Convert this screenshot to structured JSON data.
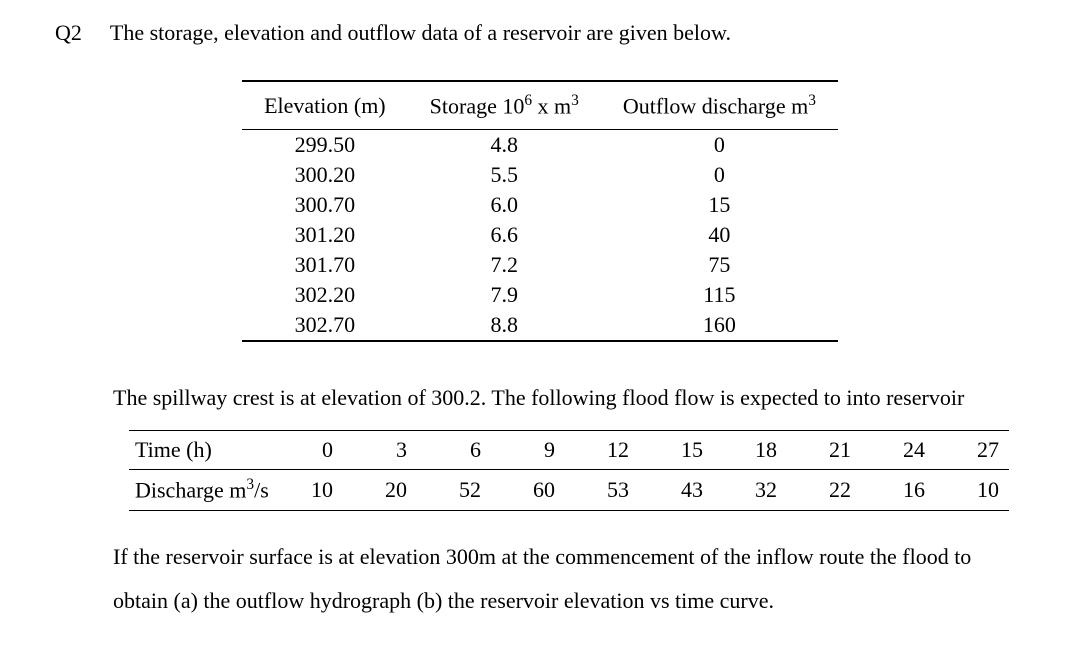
{
  "question": {
    "label": "Q2",
    "prompt": "The storage, elevation and outflow data of a reservoir are given below."
  },
  "table1": {
    "headers": {
      "col1_pre": "Elevation (m)",
      "col2_pre": "Storage 10",
      "col2_sup": "6",
      "col2_post": " x m",
      "col2_sup2": "3",
      "col3_pre": "Outflow discharge m",
      "col3_sup": "3"
    },
    "rows": [
      {
        "elev": "299.50",
        "storage": "4.8",
        "outflow": "0"
      },
      {
        "elev": "300.20",
        "storage": "5.5",
        "outflow": "0"
      },
      {
        "elev": "300.70",
        "storage": "6.0",
        "outflow": "15"
      },
      {
        "elev": "301.20",
        "storage": "6.6",
        "outflow": "40"
      },
      {
        "elev": "301.70",
        "storage": "7.2",
        "outflow": "75"
      },
      {
        "elev": "302.20",
        "storage": "7.9",
        "outflow": "115"
      },
      {
        "elev": "302.70",
        "storage": "8.8",
        "outflow": "160"
      }
    ]
  },
  "mid_para": "The spillway crest is at elevation of 300.2. The following flood flow is expected to into reservoir",
  "table2": {
    "row1_label": "Time (h)",
    "row1_vals": [
      "0",
      "3",
      "6",
      "9",
      "12",
      "15",
      "18",
      "21",
      "24",
      "27"
    ],
    "row2_label_pre": "Discharge m",
    "row2_label_sup": "3",
    "row2_label_post": "/s",
    "row2_vals": [
      "10",
      "20",
      "52",
      "60",
      "53",
      "43",
      "32",
      "22",
      "16",
      "10"
    ]
  },
  "final_para": "If the reservoir surface is at elevation 300m at the commencement of the inflow route the flood to obtain (a) the outflow hydrograph (b) the reservoir elevation vs time curve."
}
